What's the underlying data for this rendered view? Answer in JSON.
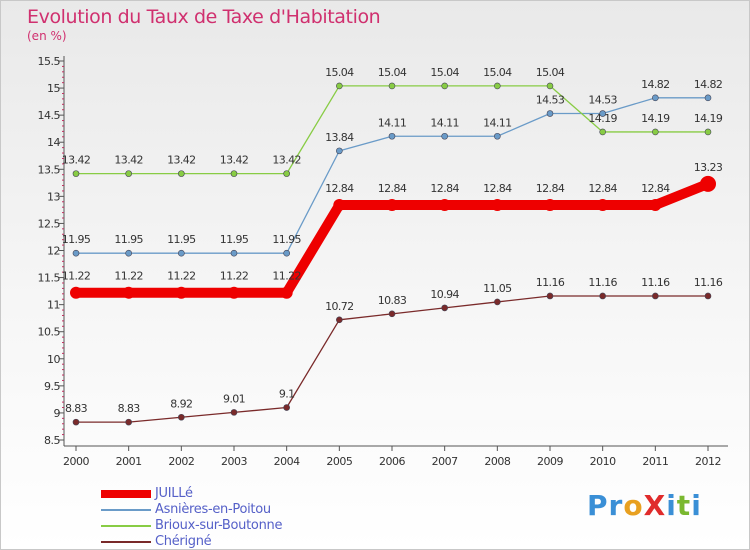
{
  "chart_data": {
    "type": "line",
    "title": "Evolution du Taux de Taxe d'Habitation",
    "subtitle": "(en %)",
    "ylim": [
      8.5,
      15.5
    ],
    "yticks": [
      "8.5",
      "9",
      "9.5",
      "10",
      "10.5",
      "11",
      "11.5",
      "12",
      "12.5",
      "13",
      "13.5",
      "14",
      "14.5",
      "15",
      "15.5"
    ],
    "categories": [
      "2000",
      "2001",
      "2002",
      "2003",
      "2004",
      "2005",
      "2006",
      "2007",
      "2008",
      "2009",
      "2010",
      "2011",
      "2012"
    ],
    "series": [
      {
        "name": "JUILLé",
        "color": "#ee0000",
        "values": [
          11.22,
          11.22,
          11.22,
          11.22,
          11.22,
          12.84,
          12.84,
          12.84,
          12.84,
          12.84,
          12.84,
          12.84,
          13.23
        ],
        "labels": [
          "11.22",
          "11.22",
          "11.22",
          "11.22",
          "11.22",
          "12.84",
          "12.84",
          "12.84",
          "12.84",
          "12.84",
          "12.84",
          "12.84",
          "13.23"
        ]
      },
      {
        "name": "Asnières-en-Poitou",
        "color": "#6a9bc8",
        "values": [
          11.95,
          11.95,
          11.95,
          11.95,
          11.95,
          13.84,
          14.11,
          14.11,
          14.11,
          14.53,
          14.53,
          14.82,
          14.82
        ],
        "labels": [
          "11.95",
          "11.95",
          "11.95",
          "11.95",
          "11.95",
          "13.84",
          "14.11",
          "14.11",
          "14.11",
          "14.53",
          "14.53",
          "14.82",
          "14.82"
        ]
      },
      {
        "name": "Brioux-sur-Boutonne",
        "color": "#88cc44",
        "values": [
          13.42,
          13.42,
          13.42,
          13.42,
          13.42,
          15.04,
          15.04,
          15.04,
          15.04,
          15.04,
          14.19,
          14.19,
          14.19
        ],
        "labels": [
          "13.42",
          "13.42",
          "13.42",
          "13.42",
          "13.42",
          "15.04",
          "15.04",
          "15.04",
          "15.04",
          "15.04",
          "14.19",
          "14.19",
          "14.19"
        ]
      },
      {
        "name": "Chérigné",
        "color": "#7a2a2a",
        "values": [
          8.83,
          8.83,
          8.92,
          9.01,
          9.1,
          10.72,
          10.83,
          10.94,
          11.05,
          11.16,
          11.16,
          11.16,
          11.16
        ],
        "labels": [
          "8.83",
          "8.83",
          "8.92",
          "9.01",
          "9.1",
          "10.72",
          "10.83",
          "10.94",
          "11.05",
          "11.16",
          "11.16",
          "11.16",
          "11.16"
        ]
      }
    ],
    "grid": false,
    "legend_position": "bottom-left"
  },
  "legend": [
    {
      "label": "JUILLé",
      "color": "#ee0000"
    },
    {
      "label": "Asnières-en-Poitou",
      "color": "#6a9bc8"
    },
    {
      "label": "Brioux-sur-Boutonne",
      "color": "#88cc44"
    },
    {
      "label": "Chérigné",
      "color": "#7a2a2a"
    }
  ],
  "logo": {
    "text": "ProXiti"
  }
}
